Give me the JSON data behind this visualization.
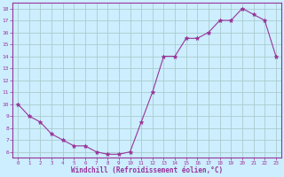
{
  "x": [
    0,
    1,
    2,
    3,
    4,
    5,
    6,
    7,
    8,
    9,
    10,
    11,
    12,
    13,
    14,
    15,
    16,
    17,
    18,
    19,
    20,
    21,
    22,
    23
  ],
  "y": [
    10,
    9,
    8.5,
    7.5,
    7,
    6.5,
    6.5,
    6,
    5.8,
    5.8,
    6,
    8.5,
    11,
    14,
    14,
    15.5,
    15.5,
    16,
    17,
    17,
    18,
    17.5,
    17,
    14
  ],
  "xlabel": "Windchill (Refroidissement éolien,°C)",
  "line_color": "#993399",
  "marker_color": "#993399",
  "bg_color": "#cceeff",
  "grid_color": "#aacccc",
  "text_color": "#993399",
  "ylim": [
    5.5,
    18.5
  ],
  "xlim": [
    -0.5,
    23.5
  ],
  "yticks": [
    6,
    7,
    8,
    9,
    10,
    11,
    12,
    13,
    14,
    15,
    16,
    17,
    18
  ],
  "xticks": [
    0,
    1,
    2,
    3,
    4,
    5,
    6,
    7,
    8,
    9,
    10,
    11,
    12,
    13,
    14,
    15,
    16,
    17,
    18,
    19,
    20,
    21,
    22,
    23
  ]
}
